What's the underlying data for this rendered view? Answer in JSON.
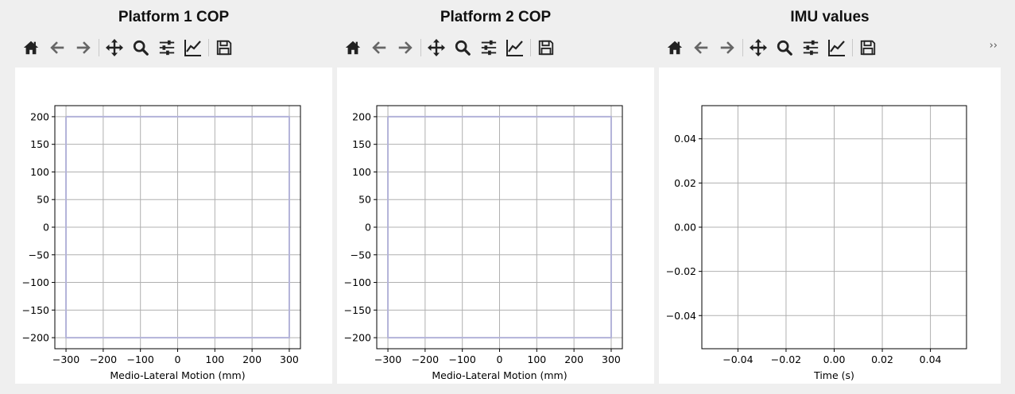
{
  "panels": [
    {
      "title": "Platform 1 COP"
    },
    {
      "title": "Platform 2 COP"
    },
    {
      "title": "IMU values"
    }
  ],
  "toolbar": {
    "icons": [
      "home-icon",
      "back-arrow-icon",
      "forward-arrow-icon",
      "pan-icon",
      "zoom-icon",
      "subplots-icon",
      "axes-edit-icon",
      "save-icon"
    ],
    "overflow_label": "››"
  },
  "colors": {
    "window_bg": "#efefef",
    "plot_bg": "#ffffff",
    "grid": "#b0b0b0",
    "outline": "#b3b3d9",
    "icon": "#222222"
  },
  "chart_data": [
    {
      "type": "line",
      "title": "",
      "xlabel": "Medio-Lateral Motion (mm)",
      "ylabel": "",
      "xlim": [
        -330,
        330
      ],
      "ylim": [
        -220,
        220
      ],
      "xticks": [
        -300,
        -200,
        -100,
        0,
        100,
        200,
        300
      ],
      "yticks": [
        200,
        150,
        100,
        50,
        0,
        -50,
        -100,
        -150,
        -200
      ],
      "xtick_labels": [
        "−300",
        "−200",
        "−100",
        "0",
        "100",
        "200",
        "300"
      ],
      "ytick_labels": [
        "200",
        "150",
        "100",
        "50",
        "0",
        "−50",
        "−100",
        "−150",
        "−200"
      ],
      "grid": true,
      "series": [
        {
          "x": [
            -300,
            300,
            300,
            -300,
            -300
          ],
          "y": [
            200,
            200,
            -200,
            -200,
            200
          ],
          "color": "#b3b3d9"
        }
      ]
    },
    {
      "type": "line",
      "title": "",
      "xlabel": "Medio-Lateral Motion (mm)",
      "ylabel": "",
      "xlim": [
        -330,
        330
      ],
      "ylim": [
        -220,
        220
      ],
      "xticks": [
        -300,
        -200,
        -100,
        0,
        100,
        200,
        300
      ],
      "yticks": [
        200,
        150,
        100,
        50,
        0,
        -50,
        -100,
        -150,
        -200
      ],
      "xtick_labels": [
        "−300",
        "−200",
        "−100",
        "0",
        "100",
        "200",
        "300"
      ],
      "ytick_labels": [
        "200",
        "150",
        "100",
        "50",
        "0",
        "−50",
        "−100",
        "−150",
        "−200"
      ],
      "grid": true,
      "series": [
        {
          "x": [
            -300,
            300,
            300,
            -300,
            -300
          ],
          "y": [
            200,
            200,
            -200,
            -200,
            200
          ],
          "color": "#b3b3d9"
        }
      ]
    },
    {
      "type": "line",
      "title": "",
      "xlabel": "Time (s)",
      "ylabel": "",
      "xlim": [
        -0.055,
        0.055
      ],
      "ylim": [
        -0.055,
        0.055
      ],
      "xticks": [
        -0.04,
        -0.02,
        0,
        0.02,
        0.04
      ],
      "yticks": [
        0.04,
        0.02,
        0,
        -0.02,
        -0.04
      ],
      "xtick_labels": [
        "−0.04",
        "−0.02",
        "0.00",
        "0.02",
        "0.04"
      ],
      "ytick_labels": [
        "0.04",
        "0.02",
        "0.00",
        "−0.02",
        "−0.04"
      ],
      "grid": true,
      "series": []
    }
  ]
}
